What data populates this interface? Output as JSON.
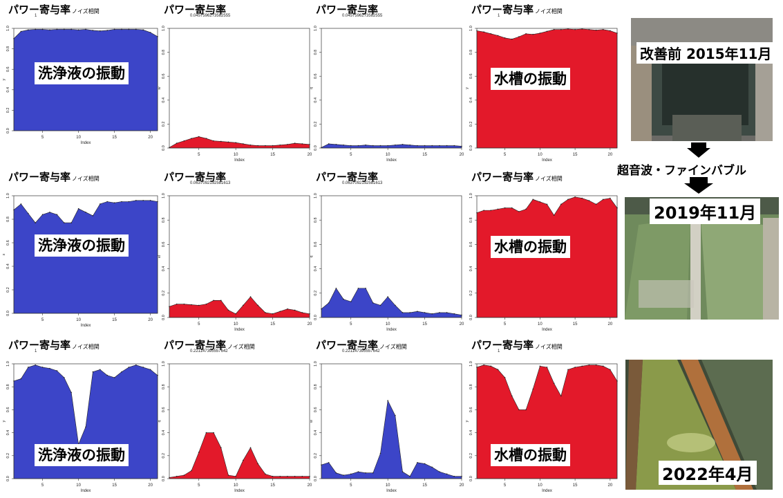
{
  "labels": {
    "title_main": "パワー寄与率",
    "title_sub": "ノイズ相関",
    "wash": "洗浄液の振動",
    "tank": "水槽の振動",
    "xlabel": "Index"
  },
  "colors": {
    "blue": "#3c45c8",
    "red": "#e3192a"
  },
  "photos": {
    "before": "改善前 2015年11月",
    "mid": "2019年11月",
    "after": "2022年4月",
    "method": "超音波・ファインバブル"
  },
  "chart_data": [
    {
      "id": "r1c1",
      "type": "area",
      "color": "blue",
      "title": "パワー寄与率",
      "title_suffix": "ノイズ相関",
      "subtitle": "1",
      "xlabel": "Index",
      "ylabel": "y",
      "x": [
        1,
        2,
        3,
        4,
        5,
        6,
        7,
        8,
        9,
        10,
        11,
        12,
        13,
        14,
        15,
        16,
        17,
        18,
        19,
        20,
        21
      ],
      "values": [
        0.9,
        0.97,
        0.985,
        0.99,
        0.99,
        0.985,
        0.99,
        0.99,
        0.99,
        0.985,
        0.99,
        0.98,
        0.975,
        0.98,
        0.99,
        0.99,
        0.99,
        0.99,
        0.985,
        0.96,
        0.92
      ],
      "ylim": [
        0,
        1
      ],
      "xlim": [
        1,
        21
      ],
      "xticks": [
        5,
        10,
        15,
        20
      ],
      "yticks": [
        0,
        0.2,
        0.4,
        0.6,
        0.8,
        1.0
      ],
      "overlay": "wash"
    },
    {
      "id": "r1c2",
      "type": "area",
      "color": "red",
      "title": "パワー寄与率",
      "title_suffix": "",
      "subtitle": "0.0457596273582555",
      "xlabel": "Index",
      "ylabel": "w",
      "x": [
        1,
        2,
        3,
        4,
        5,
        6,
        7,
        8,
        9,
        10,
        11,
        12,
        13,
        14,
        15,
        16,
        17,
        18,
        19,
        20
      ],
      "values": [
        0.005,
        0.04,
        0.06,
        0.08,
        0.095,
        0.08,
        0.06,
        0.055,
        0.05,
        0.045,
        0.035,
        0.025,
        0.02,
        0.02,
        0.02,
        0.025,
        0.03,
        0.04,
        0.035,
        0.03
      ],
      "ylim": [
        0,
        1
      ],
      "xlim": [
        1,
        20
      ],
      "xticks": [
        5,
        10,
        15,
        20
      ],
      "yticks": [
        0,
        0.2,
        0.4,
        0.6,
        0.8,
        1.0
      ],
      "overlay": ""
    },
    {
      "id": "r1c3",
      "type": "area",
      "color": "blue",
      "title": "パワー寄与率",
      "title_suffix": "",
      "subtitle": "0.0457596273582555",
      "xlabel": "Index",
      "ylabel": "q",
      "x": [
        1,
        2,
        3,
        4,
        5,
        6,
        7,
        8,
        9,
        10,
        11,
        12,
        13,
        14,
        15,
        16,
        17,
        18,
        19,
        20
      ],
      "values": [
        0.005,
        0.035,
        0.03,
        0.025,
        0.02,
        0.02,
        0.025,
        0.02,
        0.02,
        0.02,
        0.025,
        0.03,
        0.025,
        0.02,
        0.02,
        0.02,
        0.02,
        0.02,
        0.02,
        0.015
      ],
      "ylim": [
        0,
        1
      ],
      "xlim": [
        1,
        20
      ],
      "xticks": [
        5,
        10,
        15,
        20
      ],
      "yticks": [
        0,
        0.2,
        0.4,
        0.6,
        0.8,
        1.0
      ],
      "overlay": ""
    },
    {
      "id": "r1c4",
      "type": "area",
      "color": "red",
      "title": "パワー寄与率",
      "title_suffix": "ノイズ相関",
      "subtitle": "1",
      "xlabel": "Index",
      "ylabel": "y",
      "x": [
        1,
        2,
        3,
        4,
        5,
        6,
        7,
        8,
        9,
        10,
        11,
        12,
        13,
        14,
        15,
        16,
        17,
        18,
        19,
        20,
        21
      ],
      "values": [
        0.98,
        0.97,
        0.955,
        0.94,
        0.92,
        0.91,
        0.93,
        0.955,
        0.95,
        0.96,
        0.975,
        0.99,
        0.99,
        0.995,
        0.99,
        0.995,
        0.99,
        0.985,
        0.99,
        0.98,
        0.96
      ],
      "ylim": [
        0,
        1
      ],
      "xlim": [
        1,
        21
      ],
      "xticks": [
        5,
        10,
        15,
        20
      ],
      "yticks": [
        0,
        0.2,
        0.4,
        0.6,
        0.8,
        1.0
      ],
      "overlay": "tank"
    },
    {
      "id": "r2c1",
      "type": "area",
      "color": "blue",
      "title": "パワー寄与率",
      "title_suffix": "ノイズ相関",
      "subtitle": "",
      "xlabel": "Index",
      "ylabel": "x",
      "x": [
        1,
        2,
        3,
        4,
        5,
        6,
        7,
        8,
        9,
        10,
        11,
        12,
        13,
        14,
        15,
        16,
        17,
        18,
        19,
        20,
        21
      ],
      "values": [
        0.88,
        0.93,
        0.85,
        0.77,
        0.84,
        0.86,
        0.84,
        0.77,
        0.77,
        0.89,
        0.86,
        0.83,
        0.93,
        0.95,
        0.94,
        0.95,
        0.95,
        0.96,
        0.96,
        0.96,
        0.95
      ],
      "ylim": [
        0,
        1
      ],
      "xlim": [
        1,
        21
      ],
      "xticks": [
        5,
        10,
        15,
        20
      ],
      "yticks": [
        0,
        0.2,
        0.4,
        0.6,
        0.8,
        1.0
      ],
      "overlay": "wash"
    },
    {
      "id": "r2c2",
      "type": "area",
      "color": "red",
      "title": "パワー寄与率",
      "title_suffix": "",
      "subtitle": "0.0637092192581613",
      "xlabel": "Index",
      "ylabel": "el",
      "x": [
        1,
        2,
        3,
        4,
        5,
        6,
        7,
        8,
        9,
        10,
        11,
        12,
        13,
        14,
        15,
        16,
        17,
        18,
        19,
        20
      ],
      "values": [
        0.09,
        0.11,
        0.11,
        0.105,
        0.1,
        0.11,
        0.14,
        0.14,
        0.06,
        0.03,
        0.1,
        0.17,
        0.1,
        0.04,
        0.03,
        0.05,
        0.07,
        0.06,
        0.04,
        0.03
      ],
      "ylim": [
        0,
        1
      ],
      "xlim": [
        1,
        20
      ],
      "xticks": [
        5,
        10,
        15,
        20
      ],
      "yticks": [
        0,
        0.2,
        0.4,
        0.6,
        0.8,
        1.0
      ],
      "overlay": ""
    },
    {
      "id": "r2c3",
      "type": "area",
      "color": "blue",
      "title": "パワー寄与率",
      "title_suffix": "",
      "subtitle": "0.0637092192581613",
      "xlabel": "Index",
      "ylabel": "q",
      "x": [
        1,
        2,
        3,
        4,
        5,
        6,
        7,
        8,
        9,
        10,
        11,
        12,
        13,
        14,
        15,
        16,
        17,
        18,
        19,
        20
      ],
      "values": [
        0.07,
        0.12,
        0.24,
        0.15,
        0.13,
        0.24,
        0.24,
        0.12,
        0.1,
        0.17,
        0.1,
        0.04,
        0.04,
        0.05,
        0.04,
        0.03,
        0.04,
        0.04,
        0.03,
        0.02
      ],
      "ylim": [
        0,
        1
      ],
      "xlim": [
        1,
        20
      ],
      "xticks": [
        5,
        10,
        15,
        20
      ],
      "yticks": [
        0,
        0.2,
        0.4,
        0.6,
        0.8,
        1.0
      ],
      "overlay": ""
    },
    {
      "id": "r2c4",
      "type": "area",
      "color": "red",
      "title": "パワー寄与率",
      "title_suffix": "ノイズ相関",
      "subtitle": "",
      "xlabel": "Index",
      "ylabel": "",
      "x": [
        1,
        2,
        3,
        4,
        5,
        6,
        7,
        8,
        9,
        10,
        11,
        12,
        13,
        14,
        15,
        16,
        17,
        18,
        19,
        20,
        21
      ],
      "values": [
        0.86,
        0.88,
        0.88,
        0.89,
        0.9,
        0.9,
        0.87,
        0.89,
        0.97,
        0.95,
        0.93,
        0.84,
        0.93,
        0.97,
        0.99,
        0.98,
        0.96,
        0.93,
        0.97,
        0.98,
        0.9
      ],
      "ylim": [
        0,
        1
      ],
      "xlim": [
        1,
        21
      ],
      "xticks": [
        5,
        10,
        15,
        20
      ],
      "yticks": [
        0,
        0.2,
        0.4,
        0.6,
        0.8,
        1.0
      ],
      "overlay": "tank"
    },
    {
      "id": "r3c1",
      "type": "area",
      "color": "blue",
      "title": "パワー寄与率",
      "title_suffix": "ノイズ相関",
      "subtitle": "1",
      "xlabel": "Index",
      "ylabel": "y",
      "x": [
        1,
        2,
        3,
        4,
        5,
        6,
        7,
        8,
        9,
        10,
        11,
        12,
        13,
        14,
        15,
        16,
        17,
        18,
        19,
        20,
        21
      ],
      "values": [
        0.85,
        0.87,
        0.97,
        0.99,
        0.97,
        0.96,
        0.94,
        0.88,
        0.75,
        0.3,
        0.45,
        0.93,
        0.95,
        0.9,
        0.88,
        0.93,
        0.97,
        0.99,
        0.97,
        0.95,
        0.9
      ],
      "ylim": [
        0,
        1
      ],
      "xlim": [
        1,
        21
      ],
      "xticks": [
        5,
        10,
        15,
        20
      ],
      "yticks": [
        0,
        0.2,
        0.4,
        0.6,
        0.8,
        1.0
      ],
      "overlay": "wash"
    },
    {
      "id": "r3c2",
      "type": "area",
      "color": "red",
      "title": "パワー寄与率",
      "title_suffix": "ノイズ相関",
      "subtitle": "0.221147395557642",
      "xlabel": "Index",
      "ylabel": "q",
      "x": [
        1,
        2,
        3,
        4,
        5,
        6,
        7,
        8,
        9,
        10,
        11,
        12,
        13,
        14,
        15,
        16,
        17,
        18,
        19,
        20
      ],
      "values": [
        0.01,
        0.02,
        0.03,
        0.07,
        0.23,
        0.4,
        0.4,
        0.27,
        0.03,
        0.02,
        0.16,
        0.27,
        0.13,
        0.04,
        0.02,
        0.02,
        0.02,
        0.02,
        0.02,
        0.02
      ],
      "ylim": [
        0,
        1
      ],
      "xlim": [
        1,
        20
      ],
      "xticks": [
        5,
        10,
        15,
        20
      ],
      "yticks": [
        0,
        0.2,
        0.4,
        0.6,
        0.8,
        1.0
      ],
      "overlay": ""
    },
    {
      "id": "r3c3",
      "type": "area",
      "color": "blue",
      "title": "パワー寄与率",
      "title_suffix": "ノイズ相関",
      "subtitle": "0.221147395557642",
      "xlabel": "Index",
      "ylabel": "w",
      "x": [
        1,
        2,
        3,
        4,
        5,
        6,
        7,
        8,
        9,
        10,
        11,
        12,
        13,
        14,
        15,
        16,
        17,
        18,
        19,
        20
      ],
      "values": [
        0.12,
        0.14,
        0.05,
        0.03,
        0.04,
        0.06,
        0.05,
        0.05,
        0.22,
        0.68,
        0.55,
        0.06,
        0.02,
        0.14,
        0.13,
        0.1,
        0.06,
        0.04,
        0.02,
        0.02
      ],
      "ylim": [
        0,
        1
      ],
      "xlim": [
        1,
        20
      ],
      "xticks": [
        5,
        10,
        15,
        20
      ],
      "yticks": [
        0,
        0.2,
        0.4,
        0.6,
        0.8,
        1.0
      ],
      "overlay": ""
    },
    {
      "id": "r3c4",
      "type": "area",
      "color": "red",
      "title": "パワー寄与率",
      "title_suffix": "ノイズ相関",
      "subtitle": "1",
      "xlabel": "Index",
      "ylabel": "y",
      "x": [
        1,
        2,
        3,
        4,
        5,
        6,
        7,
        8,
        9,
        10,
        11,
        12,
        13,
        14,
        15,
        16,
        17,
        18,
        19,
        20,
        21
      ],
      "values": [
        0.97,
        0.99,
        0.98,
        0.95,
        0.88,
        0.72,
        0.6,
        0.6,
        0.78,
        0.98,
        0.97,
        0.83,
        0.72,
        0.95,
        0.97,
        0.98,
        0.99,
        0.99,
        0.98,
        0.95,
        0.85
      ],
      "ylim": [
        0,
        1
      ],
      "xlim": [
        1,
        21
      ],
      "xticks": [
        5,
        10,
        15,
        20
      ],
      "yticks": [
        0,
        0.2,
        0.4,
        0.6,
        0.8,
        1.0
      ],
      "overlay": "tank"
    }
  ]
}
